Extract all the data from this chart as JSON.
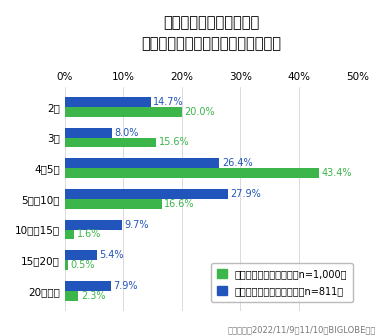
{
  "title_line1": "忘年会に参加する場合、",
  "title_line2": "どの程度の参加人数が良いと思うか",
  "categories": [
    "2人",
    "3人",
    "4〜5人",
    "5人〜10人",
    "10人〜15人",
    "15〜20人",
    "20人以上"
  ],
  "private": [
    20.0,
    15.6,
    43.4,
    16.6,
    1.6,
    0.5,
    2.3
  ],
  "work": [
    14.7,
    8.0,
    26.4,
    27.9,
    9.7,
    5.4,
    7.9
  ],
  "private_color": "#3cb54a",
  "work_color": "#2255bb",
  "private_label": "プライベートの忘年会（n=1,000）",
  "work_label": "職場・仕事関係の忘年会（n=811）",
  "xlim": [
    0,
    50
  ],
  "xticks": [
    0,
    10,
    20,
    30,
    40,
    50
  ],
  "footer": "調査期間：2022/11/9〜11/10　BIGLOBE調べ",
  "background_color": "#ffffff",
  "bar_height": 0.32,
  "title_fontsize": 10.5,
  "tick_fontsize": 7.5,
  "label_fontsize": 7,
  "legend_fontsize": 7,
  "footer_fontsize": 6
}
